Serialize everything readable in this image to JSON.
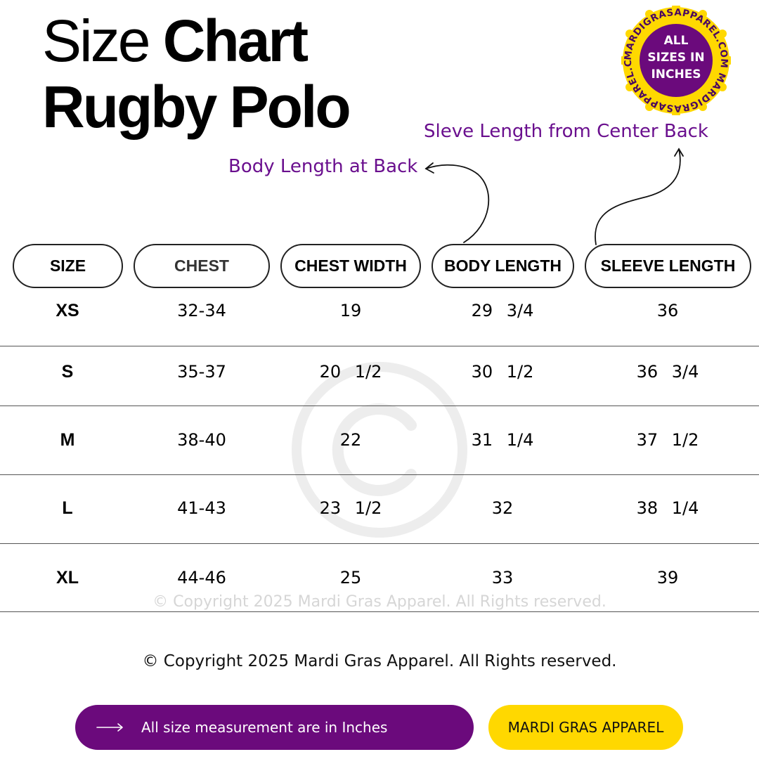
{
  "header": {
    "title_light": "Size",
    "title_bold": "Chart",
    "subtitle": "Rugby Polo"
  },
  "badge": {
    "center_text_line1": "ALL",
    "center_text_line2": "SIZES IN",
    "center_text_line3": "INCHES",
    "ring_text": "MARDIGRASAPPAREL.COM MARDIGRASAPPAREL.COM",
    "fill_color": "#6b0a7c",
    "ring_color": "#ffd800"
  },
  "annotations": {
    "body_length": "Body Length at Back",
    "sleeve_length": "Sleve Length from Center Back",
    "color": "#6a0f8e"
  },
  "table": {
    "columns": [
      "SIZE",
      "CHEST",
      "CHEST WIDTH",
      "BODY LENGTH",
      "SLEEVE LENGTH"
    ],
    "rows": [
      [
        "XS",
        "32-34",
        "19",
        "29 3/4",
        "36"
      ],
      [
        "S",
        "35-37",
        "20 1/2",
        "30 1/2",
        "36 3/4"
      ],
      [
        "M",
        "38-40",
        "22",
        "31 1/4",
        "37 1/2"
      ],
      [
        "L",
        "41-43",
        "23 1/2",
        "32",
        "38 1/4"
      ],
      [
        "XL",
        "44-46",
        "25",
        "33",
        "39"
      ]
    ]
  },
  "watermark": {
    "text": "© Copyright 2025 Mardi Gras Apparel. All Rights reserved."
  },
  "footer": {
    "copyright": "© Copyright 2025 Mardi Gras Apparel. All Rights reserved.",
    "info_button": "All size measurement are in Inches",
    "brand_button": "MARDI GRAS APPAREL",
    "info_color": "#6b0a7c",
    "brand_color": "#ffd800"
  }
}
